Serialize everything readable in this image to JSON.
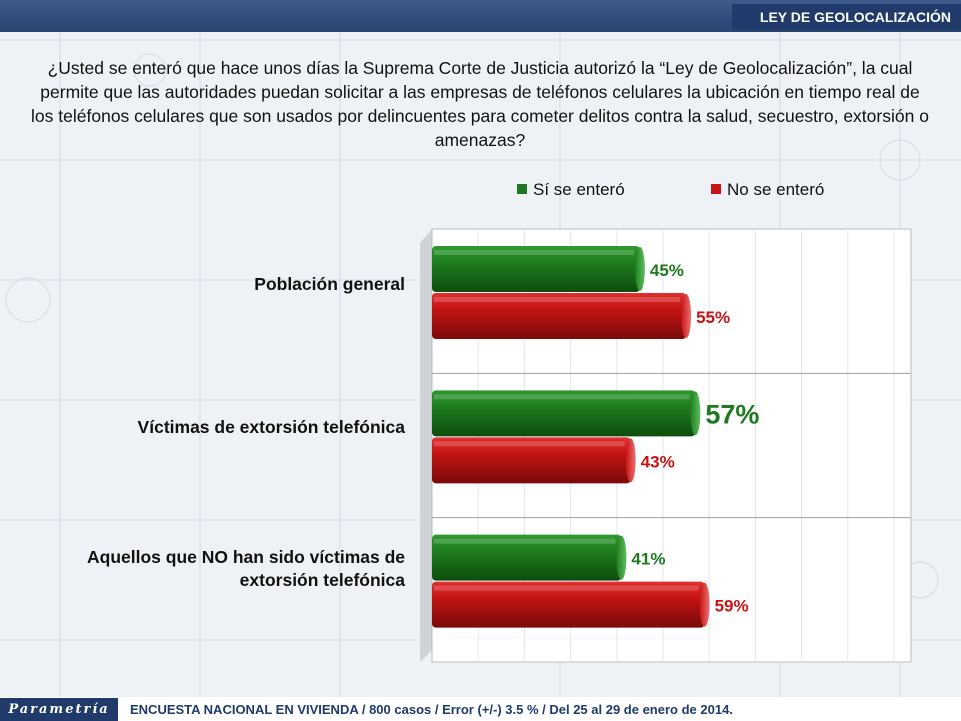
{
  "header": {
    "section_tag": "LEY DE GEOLOCALIZACIÓN"
  },
  "question": "¿Usted se enteró que hace unos días la Suprema Corte de Justicia autorizó la “Ley de Geolocalización”, la cual permite que las autoridades puedan solicitar a las empresas de teléfonos celulares la ubicación en tiempo real de los teléfonos celulares que son usados por delincuentes para cometer delitos contra la salud, secuestro, extorsión o amenazas?",
  "colors": {
    "si": "#1e7a1e",
    "no": "#c81414",
    "brand": "#1f3a6b"
  },
  "chart_data": {
    "type": "bar",
    "orientation": "horizontal",
    "categories": [
      "Población general",
      "Víctimas de extorsión telefónica",
      "Aquellos que NO han sido víctimas de extorsión telefónica"
    ],
    "series": [
      {
        "name": "Sí se enteró",
        "values": [
          45,
          57,
          41
        ],
        "labels": [
          "45%",
          "57%",
          "41%"
        ]
      },
      {
        "name": "No se enteró",
        "values": [
          55,
          43,
          59
        ],
        "labels": [
          "55%",
          "43%",
          "59%"
        ]
      }
    ],
    "xlim": [
      0,
      100
    ],
    "grid": true,
    "legend": "top"
  },
  "brand": "Parametría",
  "footer": "ENCUESTA NACIONAL EN VIVIENDA / 800 casos / Error (+/-) 3.5 % / Del 25 al 29 de enero de 2014."
}
